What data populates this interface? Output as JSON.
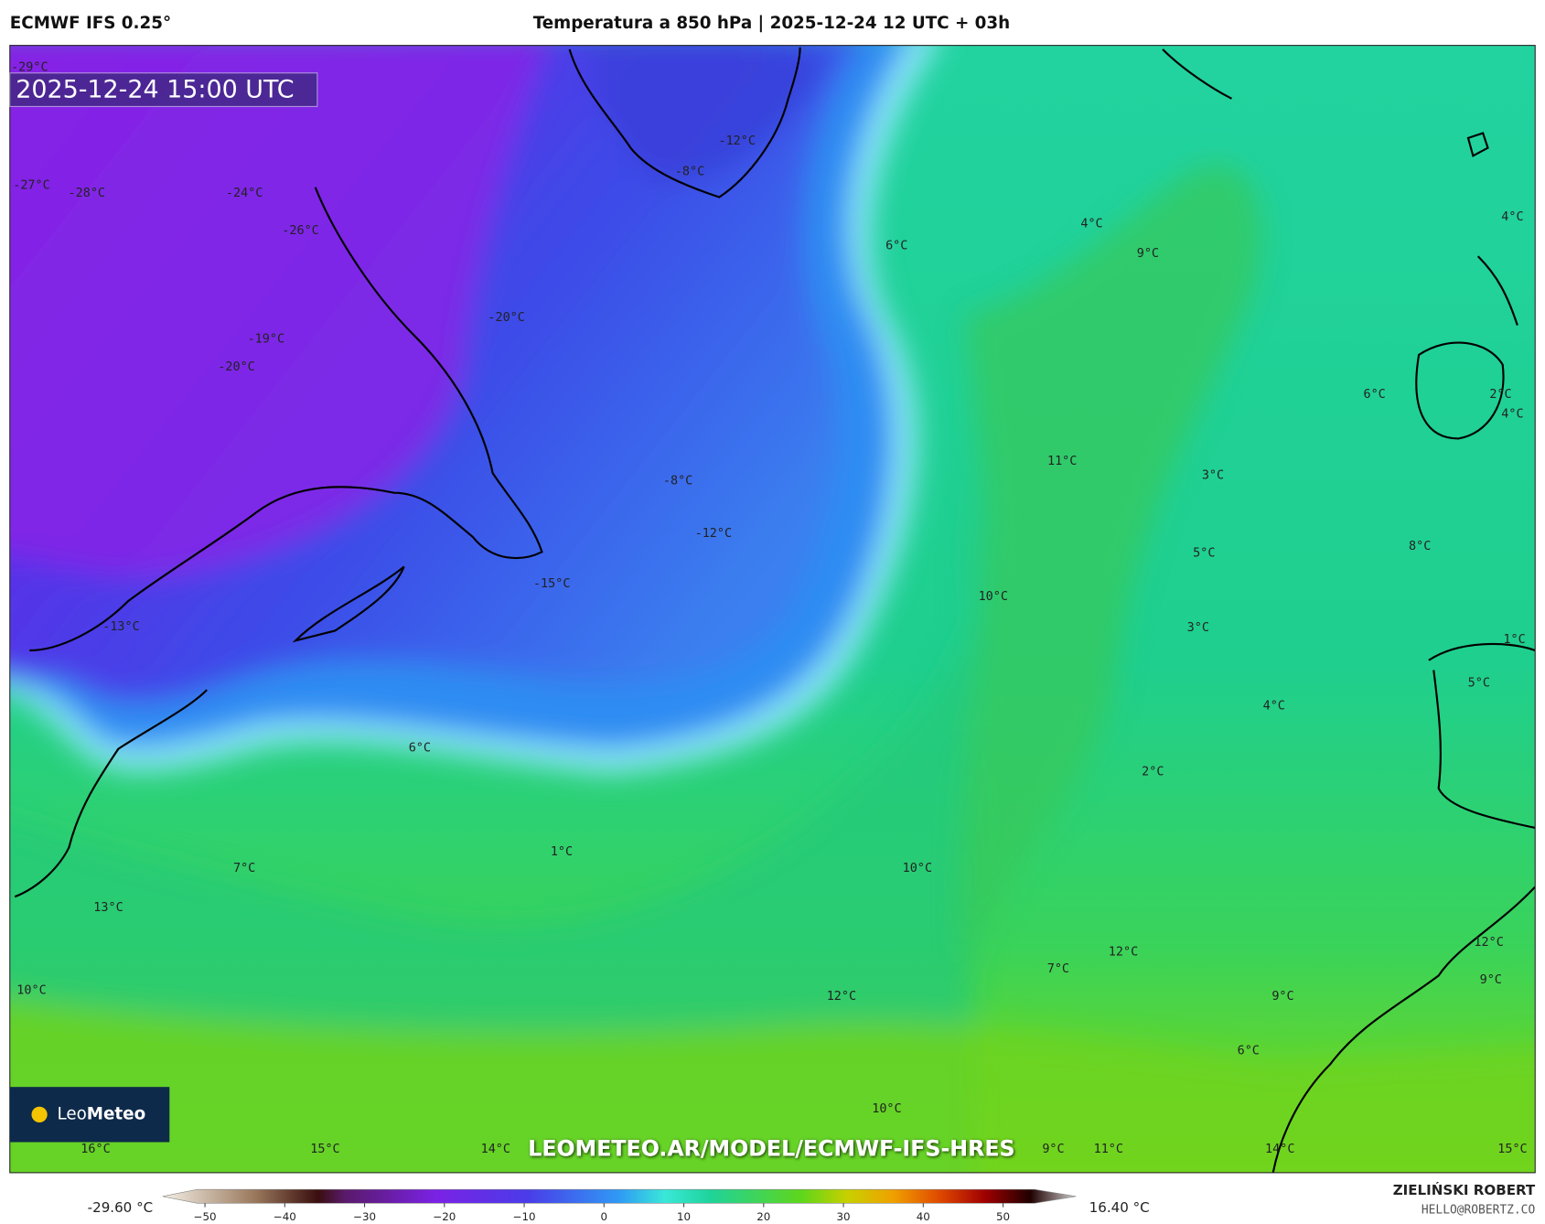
{
  "header": {
    "model": "ECMWF IFS 0.25°",
    "title": "Temperatura a 850 hPa | 2025-12-24 12 UTC + 03h"
  },
  "timestamp": "2025-12-24 15:00 UTC",
  "map_labels": [
    "-29°C",
    "-27°C",
    "-28°C",
    "-24°C",
    "-26°C",
    "-20°C",
    "-19°C",
    "-20°C",
    "-12°C",
    "-8°C",
    "6°C",
    "4°C",
    "9°C",
    "4°C",
    "6°C",
    "2°C",
    "4°C",
    "11°C",
    "3°C",
    "-8°C",
    "-12°C",
    "5°C",
    "8°C",
    "-15°C",
    "10°C",
    "3°C",
    "-13°C",
    "1°C",
    "5°C",
    "4°C",
    "6°C",
    "2°C",
    "1°C",
    "7°C",
    "10°C",
    "13°C",
    "12°C",
    "12°C",
    "7°C",
    "9°C",
    "10°C",
    "12°C",
    "9°C",
    "6°C",
    "10°C",
    "16°C",
    "15°C",
    "14°C",
    "9°C",
    "11°C",
    "14°C",
    "15°C"
  ],
  "watermark": "LEOMETEO.AR/MODEL/ECMWF-IFS-HRES",
  "logo": {
    "name_light": "Leo",
    "name_bold": "Meteo"
  },
  "colorbar": {
    "min_label": "-29.60 °C",
    "max_label": "16.40 °C",
    "ticks": [
      "−50",
      "−40",
      "−30",
      "−20",
      "−10",
      "0",
      "10",
      "20",
      "30",
      "40",
      "50"
    ]
  },
  "author": {
    "name": "ZIELIŃSKI ROBERT",
    "email": "HELLO@ROBERTZ.CO"
  }
}
